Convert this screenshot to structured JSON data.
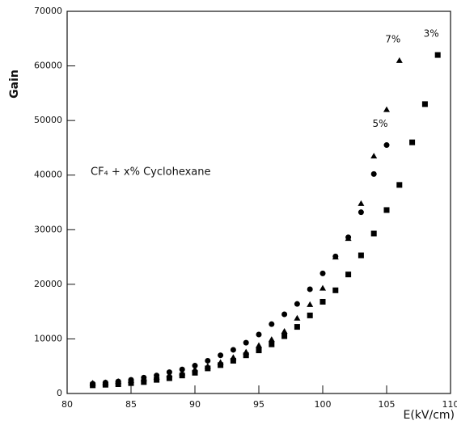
{
  "chart_data": {
    "type": "scatter",
    "ylabel": "Gain",
    "xlabel": "E(kV/cm)",
    "annotation": "CF₄ + x% Cyclohexane",
    "xlim": [
      80,
      110
    ],
    "xticks": [
      80,
      85,
      90,
      95,
      100,
      105,
      110
    ],
    "ylim": [
      0,
      70000
    ],
    "yticks": [
      0,
      10000,
      20000,
      30000,
      40000,
      50000,
      60000,
      70000
    ],
    "series": [
      {
        "name": "7%",
        "color": "#000000",
        "marker": "triangle",
        "x": [
          82,
          83,
          84,
          85,
          86,
          87,
          88,
          89,
          90,
          91,
          92,
          93,
          94,
          95,
          96,
          97,
          98,
          99,
          100,
          101,
          102,
          103,
          104,
          105,
          106
        ],
        "values": [
          1900,
          2000,
          2200,
          2400,
          2700,
          3000,
          3400,
          3800,
          4400,
          5000,
          5700,
          6600,
          7600,
          8800,
          9900,
          11400,
          13800,
          16300,
          19300,
          25000,
          28400,
          34800,
          43500,
          52000,
          61000
        ]
      },
      {
        "name": "5%",
        "color": "#000000",
        "marker": "circle",
        "x": [
          82,
          83,
          84,
          85,
          86,
          87,
          88,
          89,
          90,
          91,
          92,
          93,
          94,
          95,
          96,
          97,
          98,
          99,
          100,
          101,
          102,
          103,
          104,
          105
        ],
        "values": [
          1800,
          2000,
          2200,
          2500,
          2900,
          3300,
          3900,
          4400,
          5100,
          6000,
          7000,
          8000,
          9300,
          10800,
          12700,
          14500,
          16400,
          19100,
          22000,
          25100,
          28600,
          33200,
          40200,
          45500
        ]
      },
      {
        "name": "3%",
        "color": "#000000",
        "marker": "square",
        "x": [
          82,
          83,
          84,
          85,
          86,
          87,
          88,
          89,
          90,
          91,
          92,
          93,
          94,
          95,
          96,
          97,
          98,
          99,
          100,
          101,
          102,
          103,
          104,
          105,
          106,
          107,
          108,
          109
        ],
        "values": [
          1500,
          1600,
          1700,
          1900,
          2100,
          2500,
          2800,
          3300,
          3800,
          4600,
          5200,
          6000,
          7000,
          7900,
          9000,
          10500,
          12200,
          14300,
          16800,
          18900,
          21800,
          25300,
          29300,
          33600,
          38200,
          46000,
          53000,
          62000
        ]
      }
    ]
  }
}
